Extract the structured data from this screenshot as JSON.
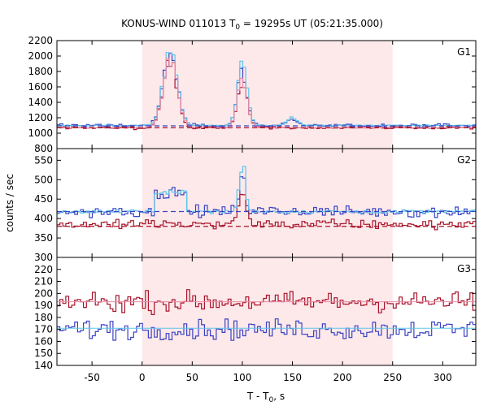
{
  "chart_data": {
    "type": "line",
    "title": {
      "main": "KONUS-WIND 011013 T",
      "sub": "0",
      "rest": " = 19295s UT (05:21:35.000)"
    },
    "xlabel": {
      "main": "T - T",
      "sub": "0",
      "rest": ", s"
    },
    "ylabel": "counts / sec",
    "xlim": [
      -85,
      333
    ],
    "x_ticks": [
      -50,
      0,
      50,
      100,
      150,
      200,
      250,
      300
    ],
    "shaded_interval": [
      0,
      250
    ],
    "colors": {
      "shade": "#fde8ea",
      "blue": "#3a43c4",
      "red": "#a8142a",
      "cyan": "#5fc5ea",
      "pink": "#e88ca6"
    },
    "panels": [
      {
        "name": "G1",
        "ylim": [
          800,
          2200
        ],
        "y_ticks": [
          800,
          1000,
          1200,
          1400,
          1600,
          1800,
          2000,
          2200
        ],
        "background_level": 1090,
        "series": [
          {
            "key": "blue",
            "style": "step",
            "baseline": 1100,
            "noise": 15,
            "peaks": [
              [
                28,
                2040,
                7
              ],
              [
                100,
                1790,
                5
              ],
              [
                150,
                1180,
                5
              ]
            ],
            "plateau": null
          },
          {
            "key": "red",
            "style": "step",
            "baseline": 1070,
            "noise": 12,
            "peaks": [
              [
                28,
                1960,
                7
              ],
              [
                100,
                1660,
                5
              ]
            ],
            "plateau": null
          },
          {
            "key": "cyan",
            "style": "step",
            "baseline": 1100,
            "noise": 4,
            "peaks": [
              [
                28,
                2070,
                7
              ],
              [
                100,
                1880,
                5
              ],
              [
                150,
                1200,
                5
              ]
            ],
            "plateau": null
          },
          {
            "key": "pink",
            "style": "step",
            "baseline": 1070,
            "noise": 4,
            "peaks": [
              [
                28,
                1980,
                7
              ],
              [
                100,
                1680,
                5
              ]
            ],
            "plateau": null
          },
          {
            "key": "red",
            "style": "dashed",
            "value": 1070
          },
          {
            "key": "blue",
            "style": "dashed",
            "value": 1095
          }
        ]
      },
      {
        "name": "G2",
        "ylim": [
          300,
          580
        ],
        "y_ticks": [
          300,
          350,
          400,
          450,
          500,
          550
        ],
        "background_level": 415,
        "series": [
          {
            "key": "blue",
            "style": "step",
            "baseline": 418,
            "noise": 10,
            "peaks": [
              [
                100,
                520,
                3
              ]
            ],
            "plateau": [
              12,
              45,
              468
            ]
          },
          {
            "key": "red",
            "style": "step",
            "baseline": 385,
            "noise": 8,
            "peaks": [
              [
                100,
                470,
                4
              ]
            ],
            "plateau": null
          },
          {
            "key": "cyan",
            "style": "step",
            "baseline": 418,
            "noise": 3,
            "peaks": [
              [
                100,
                545,
                3
              ]
            ],
            "plateau": [
              12,
              45,
              470
            ]
          },
          {
            "key": "red",
            "style": "dashed",
            "value": 380
          },
          {
            "key": "blue",
            "style": "dashed",
            "value": 418
          }
        ]
      },
      {
        "name": "G3",
        "ylim": [
          140,
          230
        ],
        "y_ticks": [
          140,
          150,
          160,
          170,
          180,
          190,
          200,
          210,
          220
        ],
        "background_level": 181,
        "series": [
          {
            "key": "red",
            "style": "step",
            "baseline": 193,
            "noise": 6,
            "peaks": [],
            "plateau": null
          },
          {
            "key": "blue",
            "style": "step",
            "baseline": 170,
            "noise": 6,
            "peaks": [],
            "plateau": null
          },
          {
            "key": "pink",
            "style": "flat",
            "value": 193
          },
          {
            "key": "cyan",
            "style": "flat",
            "value": 171
          }
        ]
      }
    ]
  }
}
